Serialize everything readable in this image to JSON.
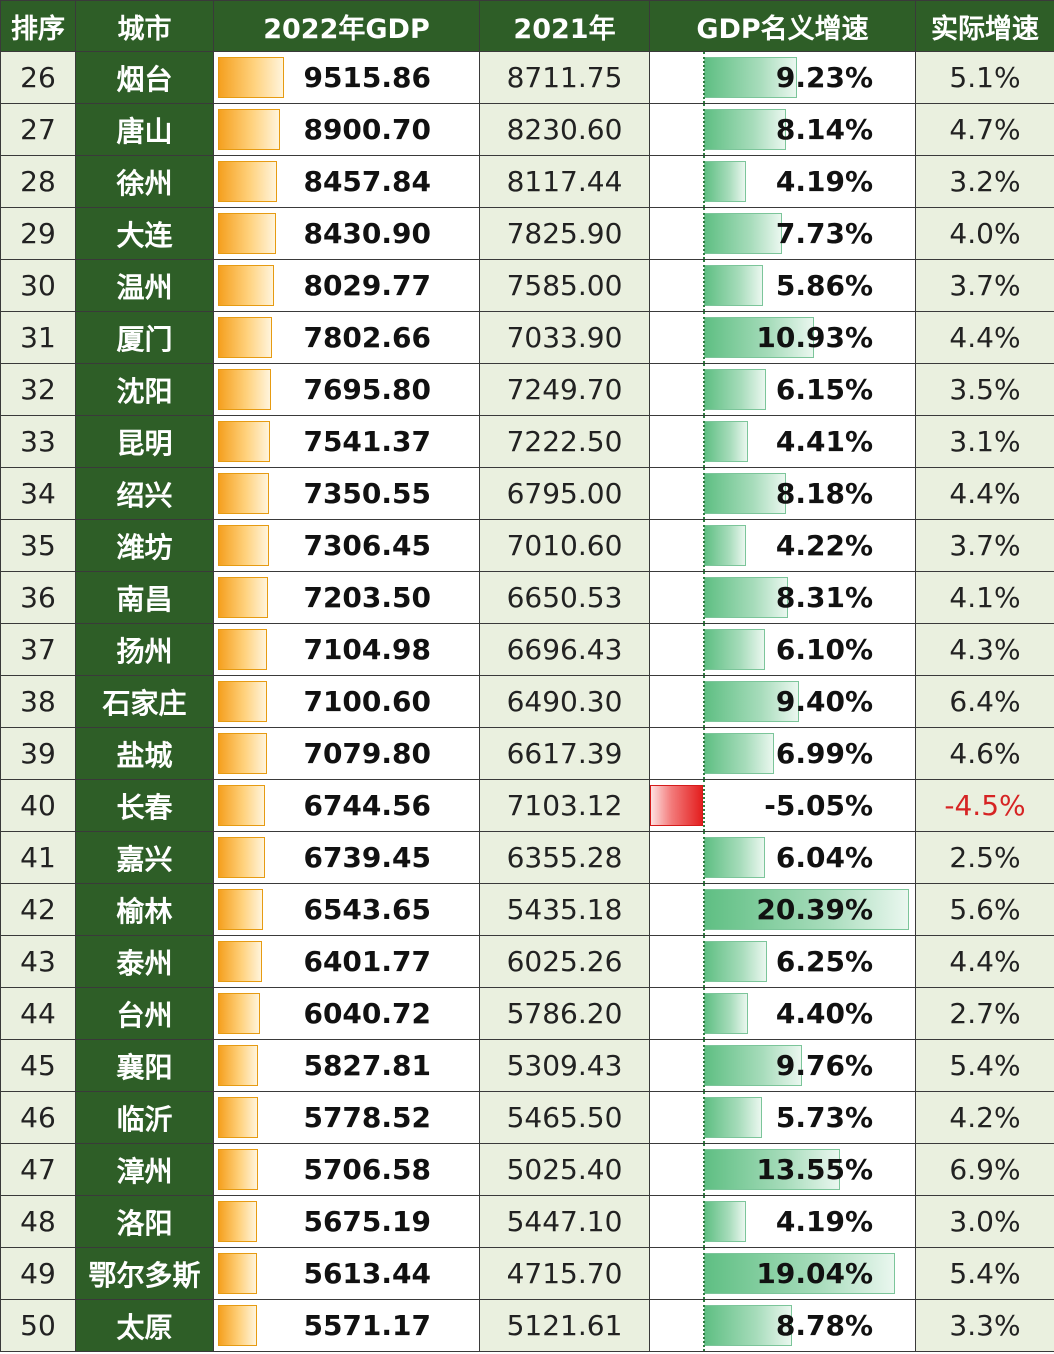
{
  "header": {
    "rank": "排序",
    "city": "城市",
    "gdp2022": "2022年GDP",
    "gdp2021": "2021年",
    "nominal_growth": "GDP名义增速",
    "real_growth": "实际增速"
  },
  "colors": {
    "header_bg": "#2e5e27",
    "light_cell_bg": "#eaf0df",
    "gdp_bar": "#f5a01f",
    "positive_bar": "#5fbf83",
    "negative_bar": "#e31e1e",
    "negative_text": "#d62424"
  },
  "rows": [
    {
      "rank": "26",
      "city": "烟台",
      "gdp2022": "9515.86",
      "gdp2021": "8711.75",
      "nominal": "9.23%",
      "real": "5.1%"
    },
    {
      "rank": "27",
      "city": "唐山",
      "gdp2022": "8900.70",
      "gdp2021": "8230.60",
      "nominal": "8.14%",
      "real": "4.7%"
    },
    {
      "rank": "28",
      "city": "徐州",
      "gdp2022": "8457.84",
      "gdp2021": "8117.44",
      "nominal": "4.19%",
      "real": "3.2%"
    },
    {
      "rank": "29",
      "city": "大连",
      "gdp2022": "8430.90",
      "gdp2021": "7825.90",
      "nominal": "7.73%",
      "real": "4.0%"
    },
    {
      "rank": "30",
      "city": "温州",
      "gdp2022": "8029.77",
      "gdp2021": "7585.00",
      "nominal": "5.86%",
      "real": "3.7%"
    },
    {
      "rank": "31",
      "city": "厦门",
      "gdp2022": "7802.66",
      "gdp2021": "7033.90",
      "nominal": "10.93%",
      "real": "4.4%"
    },
    {
      "rank": "32",
      "city": "沈阳",
      "gdp2022": "7695.80",
      "gdp2021": "7249.70",
      "nominal": "6.15%",
      "real": "3.5%"
    },
    {
      "rank": "33",
      "city": "昆明",
      "gdp2022": "7541.37",
      "gdp2021": "7222.50",
      "nominal": "4.41%",
      "real": "3.1%"
    },
    {
      "rank": "34",
      "city": "绍兴",
      "gdp2022": "7350.55",
      "gdp2021": "6795.00",
      "nominal": "8.18%",
      "real": "4.4%"
    },
    {
      "rank": "35",
      "city": "潍坊",
      "gdp2022": "7306.45",
      "gdp2021": "7010.60",
      "nominal": "4.22%",
      "real": "3.7%"
    },
    {
      "rank": "36",
      "city": "南昌",
      "gdp2022": "7203.50",
      "gdp2021": "6650.53",
      "nominal": "8.31%",
      "real": "4.1%"
    },
    {
      "rank": "37",
      "city": "扬州",
      "gdp2022": "7104.98",
      "gdp2021": "6696.43",
      "nominal": "6.10%",
      "real": "4.3%"
    },
    {
      "rank": "38",
      "city": "石家庄",
      "gdp2022": "7100.60",
      "gdp2021": "6490.30",
      "nominal": "9.40%",
      "real": "6.4%"
    },
    {
      "rank": "39",
      "city": "盐城",
      "gdp2022": "7079.80",
      "gdp2021": "6617.39",
      "nominal": "6.99%",
      "real": "4.6%"
    },
    {
      "rank": "40",
      "city": "长春",
      "gdp2022": "6744.56",
      "gdp2021": "7103.12",
      "nominal": "-5.05%",
      "real": "-4.5%"
    },
    {
      "rank": "41",
      "city": "嘉兴",
      "gdp2022": "6739.45",
      "gdp2021": "6355.28",
      "nominal": "6.04%",
      "real": "2.5%"
    },
    {
      "rank": "42",
      "city": "榆林",
      "gdp2022": "6543.65",
      "gdp2021": "5435.18",
      "nominal": "20.39%",
      "real": "5.6%"
    },
    {
      "rank": "43",
      "city": "泰州",
      "gdp2022": "6401.77",
      "gdp2021": "6025.26",
      "nominal": "6.25%",
      "real": "4.4%"
    },
    {
      "rank": "44",
      "city": "台州",
      "gdp2022": "6040.72",
      "gdp2021": "5786.20",
      "nominal": "4.40%",
      "real": "2.7%"
    },
    {
      "rank": "45",
      "city": "襄阳",
      "gdp2022": "5827.81",
      "gdp2021": "5309.43",
      "nominal": "9.76%",
      "real": "5.4%"
    },
    {
      "rank": "46",
      "city": "临沂",
      "gdp2022": "5778.52",
      "gdp2021": "5465.50",
      "nominal": "5.73%",
      "real": "4.2%"
    },
    {
      "rank": "47",
      "city": "漳州",
      "gdp2022": "5706.58",
      "gdp2021": "5025.40",
      "nominal": "13.55%",
      "real": "6.9%"
    },
    {
      "rank": "48",
      "city": "洛阳",
      "gdp2022": "5675.19",
      "gdp2021": "5447.10",
      "nominal": "4.19%",
      "real": "3.0%"
    },
    {
      "rank": "49",
      "city": "鄂尔多斯",
      "gdp2022": "5613.44",
      "gdp2021": "4715.70",
      "nominal": "19.04%",
      "real": "5.4%"
    },
    {
      "rank": "50",
      "city": "太原",
      "gdp2022": "5571.17",
      "gdp2021": "5121.61",
      "nominal": "8.78%",
      "real": "3.3%"
    }
  ]
}
